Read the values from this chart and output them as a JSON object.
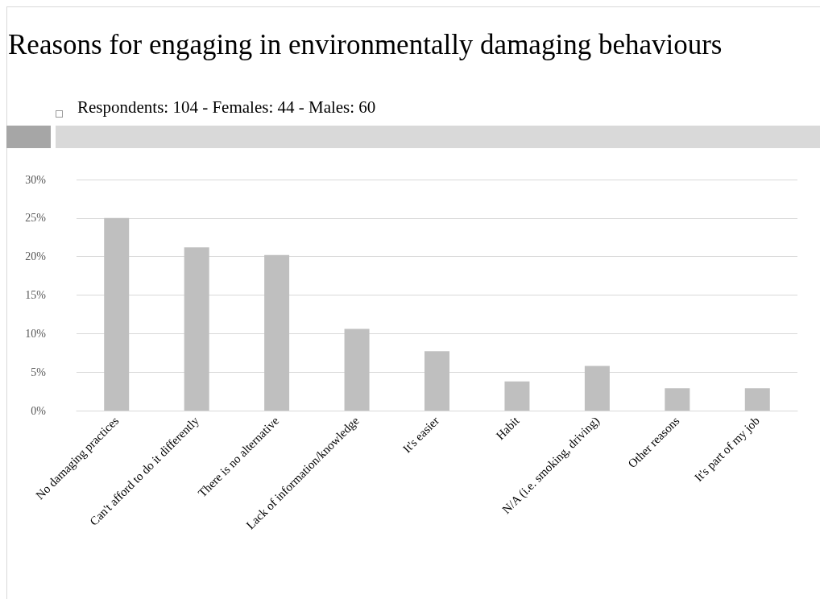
{
  "chart_data": {
    "type": "bar",
    "title": "Reasons for engaging in environmentally damaging behaviours",
    "subtitle": "Respondents: 104 -  Females: 44  -  Males: 60",
    "categories": [
      "No damaging practices",
      "Can't afford to do it differently",
      "There is no alternative",
      "Lack of information/knowledge",
      "It's easier",
      "Habit",
      "N/A (i.e. smoking, driving)",
      "Other reasons",
      "It's part of my job"
    ],
    "values": [
      25,
      21.2,
      20.2,
      10.6,
      7.7,
      3.8,
      5.8,
      2.9,
      2.9
    ],
    "color": "#bfbfbf",
    "ylim": [
      0,
      30
    ],
    "yticks": [
      {
        "value": 0,
        "label": "0%"
      },
      {
        "value": 5,
        "label": "5%"
      },
      {
        "value": 10,
        "label": "10%"
      },
      {
        "value": 15,
        "label": "15%"
      },
      {
        "value": 20,
        "label": "20%"
      },
      {
        "value": 25,
        "label": "25%"
      },
      {
        "value": 30,
        "label": "30%"
      }
    ],
    "grid": "y"
  }
}
